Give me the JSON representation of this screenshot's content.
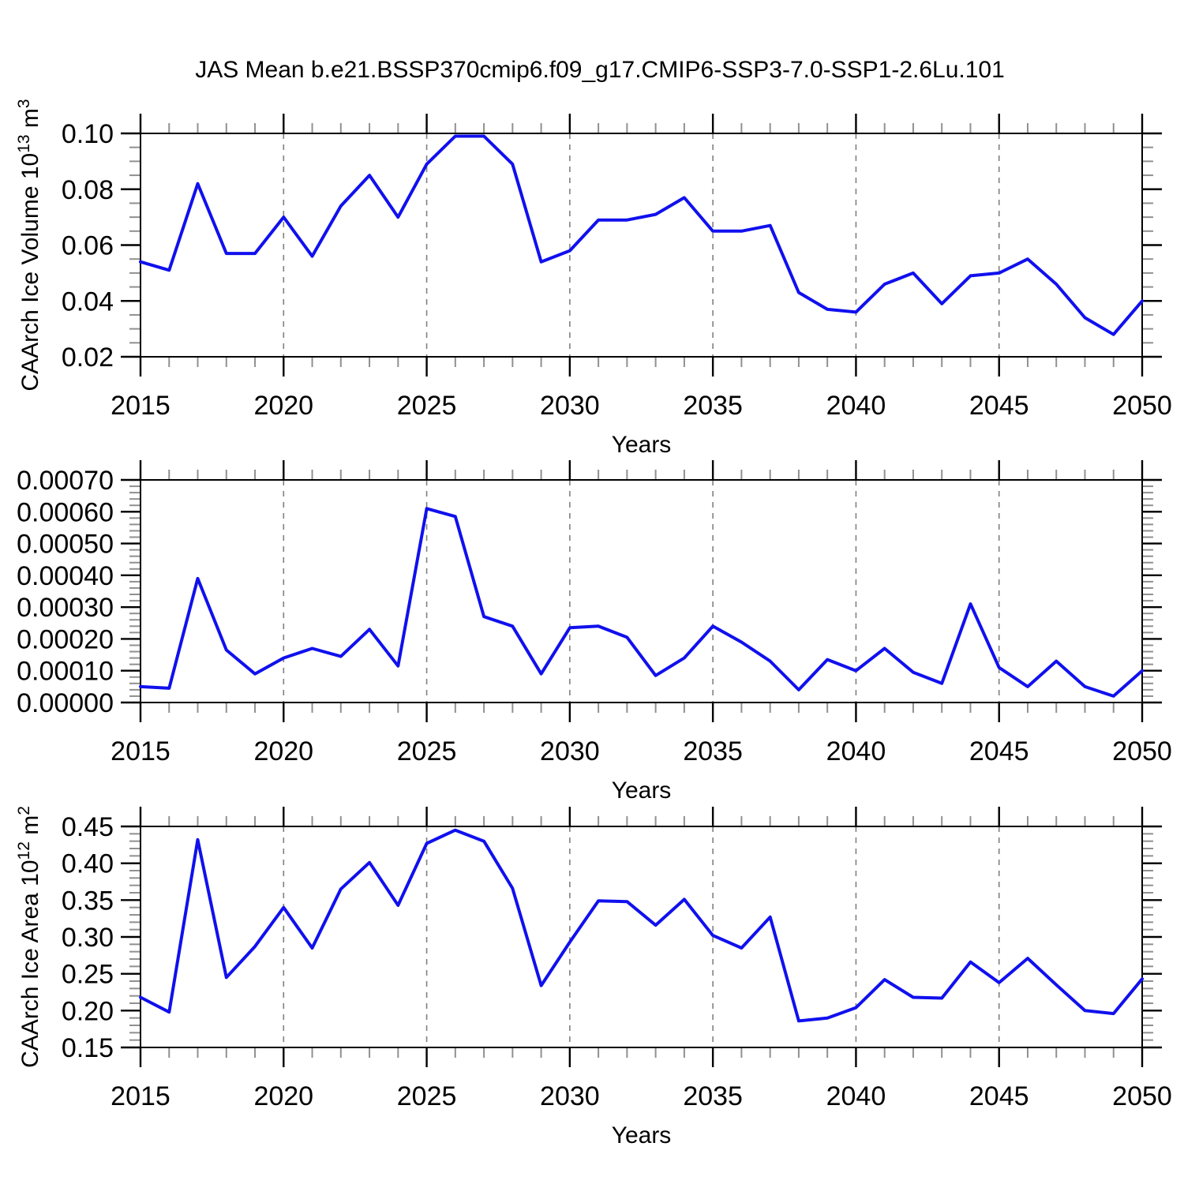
{
  "title": "JAS Mean b.e21.BSSP370cmip6.f09_g17.CMIP6-SSP3-7.0-SSP1-2.6Lu.101",
  "style": {
    "line_color": "#1010ee",
    "frame_color": "#000000",
    "major_tick_color": "#000000",
    "minor_tick_color": "#909090",
    "grid_color": "#808080",
    "text_color": "#000000"
  },
  "chart_data": [
    {
      "type": "line",
      "panel": "top",
      "xlabel": "Years",
      "ylabel": "CAArch Ice Volume 10^13 m^3",
      "ylabel_parts": [
        {
          "text": "CAArch Ice Volume 10",
          "sup": false
        },
        {
          "text": "13",
          "sup": true
        },
        {
          "text": " m",
          "sup": false
        },
        {
          "text": "3",
          "sup": true
        }
      ],
      "x": [
        2015,
        2016,
        2017,
        2018,
        2019,
        2020,
        2021,
        2022,
        2023,
        2024,
        2025,
        2026,
        2027,
        2028,
        2029,
        2030,
        2031,
        2032,
        2033,
        2034,
        2035,
        2036,
        2037,
        2038,
        2039,
        2040,
        2041,
        2042,
        2043,
        2044,
        2045,
        2046,
        2047,
        2048,
        2049,
        2050
      ],
      "values": [
        0.054,
        0.051,
        0.082,
        0.057,
        0.057,
        0.07,
        0.056,
        0.074,
        0.085,
        0.07,
        0.089,
        0.099,
        0.099,
        0.089,
        0.054,
        0.058,
        0.069,
        0.069,
        0.071,
        0.077,
        0.065,
        0.065,
        0.067,
        0.043,
        0.037,
        0.036,
        0.046,
        0.05,
        0.039,
        0.049,
        0.05,
        0.055,
        0.046,
        0.034,
        0.028,
        0.04
      ],
      "xlim": [
        2015,
        2050
      ],
      "ylim": [
        0.02,
        0.1
      ],
      "xticks": [
        2015,
        2020,
        2025,
        2030,
        2035,
        2040,
        2045,
        2050
      ],
      "xticklabels": [
        "2015",
        "2020",
        "2025",
        "2030",
        "2035",
        "2040",
        "2045",
        "2050"
      ],
      "xtick_minor_step": 1,
      "yticks": [
        0.02,
        0.04,
        0.06,
        0.08,
        0.1
      ],
      "yticklabels": [
        "0.02",
        "0.04",
        "0.06",
        "0.08",
        "0.10"
      ],
      "ytick_minor_step": 0.005,
      "grid_x_dashed": [
        2020,
        2025,
        2030,
        2035,
        2040,
        2045
      ],
      "legend": "none"
    },
    {
      "type": "line",
      "panel": "middle",
      "xlabel": "Years",
      "ylabel": "",
      "ylabel_parts": [],
      "x": [
        2015,
        2016,
        2017,
        2018,
        2019,
        2020,
        2021,
        2022,
        2023,
        2024,
        2025,
        2026,
        2027,
        2028,
        2029,
        2030,
        2031,
        2032,
        2033,
        2034,
        2035,
        2036,
        2037,
        2038,
        2039,
        2040,
        2041,
        2042,
        2043,
        2044,
        2045,
        2046,
        2047,
        2048,
        2049,
        2050
      ],
      "values": [
        5e-05,
        4.5e-05,
        0.00039,
        0.000165,
        9e-05,
        0.00014,
        0.00017,
        0.000145,
        0.00023,
        0.000115,
        0.00061,
        0.000585,
        0.00027,
        0.00024,
        9e-05,
        0.000235,
        0.00024,
        0.000205,
        8.5e-05,
        0.00014,
        0.00024,
        0.00019,
        0.00013,
        4e-05,
        0.000135,
        0.0001,
        0.00017,
        9.5e-05,
        6e-05,
        0.00031,
        0.00011,
        5e-05,
        0.00013,
        5e-05,
        2e-05,
        0.0001
      ],
      "xlim": [
        2015,
        2050
      ],
      "ylim": [
        0.0,
        0.0007
      ],
      "xticks": [
        2015,
        2020,
        2025,
        2030,
        2035,
        2040,
        2045,
        2050
      ],
      "xticklabels": [
        "2015",
        "2020",
        "2025",
        "2030",
        "2035",
        "2040",
        "2045",
        "2050"
      ],
      "xtick_minor_step": 1,
      "yticks": [
        0.0,
        0.0001,
        0.0002,
        0.0003,
        0.0004,
        0.0005,
        0.0006,
        0.0007
      ],
      "yticklabels": [
        "0.00000",
        "0.00010",
        "0.00020",
        "0.00030",
        "0.00040",
        "0.00050",
        "0.00060",
        "0.00070"
      ],
      "ytick_minor_step": 2e-05,
      "grid_x_dashed": [
        2020,
        2025,
        2030,
        2035,
        2040,
        2045
      ],
      "legend": "none"
    },
    {
      "type": "line",
      "panel": "bottom",
      "xlabel": "Years",
      "ylabel": "CAArch Ice Area 10^12 m^2",
      "ylabel_parts": [
        {
          "text": "CAArch Ice Area 10",
          "sup": false
        },
        {
          "text": "12",
          "sup": true
        },
        {
          "text": " m",
          "sup": false
        },
        {
          "text": "2",
          "sup": true
        }
      ],
      "x": [
        2015,
        2016,
        2017,
        2018,
        2019,
        2020,
        2021,
        2022,
        2023,
        2024,
        2025,
        2026,
        2027,
        2028,
        2029,
        2030,
        2031,
        2032,
        2033,
        2034,
        2035,
        2036,
        2037,
        2038,
        2039,
        2040,
        2041,
        2042,
        2043,
        2044,
        2045,
        2046,
        2047,
        2048,
        2049,
        2050
      ],
      "values": [
        0.218,
        0.198,
        0.432,
        0.245,
        0.287,
        0.34,
        0.285,
        0.365,
        0.401,
        0.343,
        0.427,
        0.445,
        0.43,
        0.366,
        0.234,
        0.293,
        0.349,
        0.348,
        0.316,
        0.351,
        0.302,
        0.285,
        0.327,
        0.186,
        0.19,
        0.204,
        0.242,
        0.218,
        0.217,
        0.266,
        0.238,
        0.271,
        0.235,
        0.2,
        0.196,
        0.243
      ],
      "xlim": [
        2015,
        2050
      ],
      "ylim": [
        0.15,
        0.45
      ],
      "xticks": [
        2015,
        2020,
        2025,
        2030,
        2035,
        2040,
        2045,
        2050
      ],
      "xticklabels": [
        "2015",
        "2020",
        "2025",
        "2030",
        "2035",
        "2040",
        "2045",
        "2050"
      ],
      "xtick_minor_step": 1,
      "yticks": [
        0.15,
        0.2,
        0.25,
        0.3,
        0.35,
        0.4,
        0.45
      ],
      "yticklabels": [
        "0.15",
        "0.20",
        "0.25",
        "0.30",
        "0.35",
        "0.40",
        "0.45"
      ],
      "ytick_minor_step": 0.01,
      "grid_x_dashed": [
        2020,
        2025,
        2030,
        2035,
        2040,
        2045
      ],
      "legend": "none"
    }
  ]
}
